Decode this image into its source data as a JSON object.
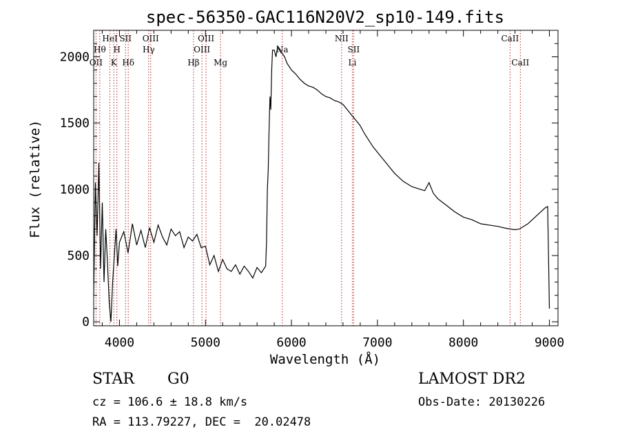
{
  "chart_data": {
    "type": "line",
    "title": "spec-56350-GAC116N20V2_sp10-149.fits",
    "xlabel": "Wavelength (Å)",
    "ylabel": "Flux (relative)",
    "xlim": [
      3700,
      9100
    ],
    "ylim": [
      -30,
      2200
    ],
    "xticks": [
      4000,
      5000,
      6000,
      7000,
      8000,
      9000
    ],
    "yticks": [
      0,
      500,
      1000,
      1500,
      2000
    ],
    "grid": false,
    "series": [
      {
        "x": [
          3700,
          3720,
          3740,
          3760,
          3780,
          3800,
          3820,
          3840,
          3860,
          3880,
          3900,
          3920,
          3940,
          3960,
          3980,
          4000,
          4050,
          4100,
          4150,
          4200,
          4250,
          4300,
          4350,
          4400,
          4450,
          4500,
          4550,
          4600,
          4650,
          4700,
          4750,
          4800,
          4850,
          4900,
          4950,
          5000,
          5050,
          5100,
          5150,
          5200,
          5250,
          5300,
          5350,
          5400,
          5450,
          5500,
          5550,
          5600,
          5650,
          5700,
          5710,
          5720,
          5730,
          5740,
          5750,
          5760,
          5770,
          5780,
          5800,
          5820,
          5840,
          5860,
          5880,
          5900,
          5920,
          5950,
          6000,
          6050,
          6100,
          6150,
          6200,
          6250,
          6300,
          6350,
          6400,
          6450,
          6500,
          6550,
          6600,
          6650,
          6700,
          6750,
          6800,
          6850,
          6900,
          6950,
          7000,
          7050,
          7100,
          7150,
          7200,
          7300,
          7400,
          7500,
          7550,
          7600,
          7650,
          7700,
          7800,
          7900,
          8000,
          8100,
          8200,
          8300,
          8400,
          8500,
          8600,
          8650,
          8700,
          8750,
          8800,
          8850,
          8900,
          8950,
          8980,
          9000
        ],
        "y": [
          200,
          1050,
          650,
          1200,
          400,
          900,
          300,
          700,
          450,
          150,
          0,
          300,
          500,
          700,
          420,
          600,
          680,
          520,
          740,
          580,
          690,
          560,
          710,
          600,
          730,
          640,
          580,
          700,
          650,
          680,
          560,
          640,
          610,
          660,
          560,
          570,
          430,
          500,
          380,
          470,
          400,
          380,
          430,
          360,
          420,
          380,
          330,
          410,
          370,
          420,
          600,
          1000,
          1150,
          1450,
          1700,
          1600,
          1900,
          2050,
          2050,
          2000,
          2080,
          2050,
          2030,
          2020,
          2000,
          1950,
          1900,
          1870,
          1830,
          1800,
          1780,
          1770,
          1750,
          1720,
          1700,
          1690,
          1670,
          1660,
          1640,
          1600,
          1560,
          1520,
          1480,
          1420,
          1370,
          1320,
          1280,
          1240,
          1200,
          1160,
          1120,
          1060,
          1020,
          1000,
          990,
          1050,
          970,
          930,
          880,
          830,
          790,
          770,
          740,
          730,
          720,
          705,
          695,
          700,
          720,
          740,
          770,
          800,
          830,
          860,
          870,
          100
        ]
      }
    ],
    "lines": [
      {
        "x": 3727,
        "label": "OII",
        "row": 3
      },
      {
        "x": 3771,
        "label": "Hθ",
        "row": 2
      },
      {
        "x": 3889,
        "label": "HeI",
        "row": 1
      },
      {
        "x": 3934,
        "label": "K",
        "row": 3
      },
      {
        "x": 3970,
        "label": "H",
        "row": 2
      },
      {
        "x": 4070,
        "label": "SII",
        "row": 1
      },
      {
        "x": 4102,
        "label": "Hδ",
        "row": 3
      },
      {
        "x": 4340,
        "label": "Hγ",
        "row": 2
      },
      {
        "x": 4363,
        "label": "OIII",
        "row": 1
      },
      {
        "x": 4861,
        "label": "Hβ",
        "row": 3
      },
      {
        "x": 4959,
        "label": "OIII",
        "row": 2
      },
      {
        "x": 5007,
        "label": "OIII",
        "row": 1
      },
      {
        "x": 5175,
        "label": "Mg",
        "row": 3
      },
      {
        "x": 5893,
        "label": "Na",
        "row": 2
      },
      {
        "x": 6583,
        "label": "NII",
        "row": 1
      },
      {
        "x": 6708,
        "label": "Li",
        "row": 3
      },
      {
        "x": 6724,
        "label": "SII",
        "row": 2
      },
      {
        "x": 8542,
        "label": "CaII",
        "row": 1
      },
      {
        "x": 8662,
        "label": "CaII",
        "row": 3
      }
    ]
  },
  "info": {
    "class_label": "STAR",
    "subclass": "G0",
    "survey": "LAMOST DR2",
    "cz": "cz = 106.6 ± 18.8 km/s",
    "obs_date": "Obs-Date: 20130226",
    "coords": "RA = 113.79227, DEC =  20.02478"
  }
}
